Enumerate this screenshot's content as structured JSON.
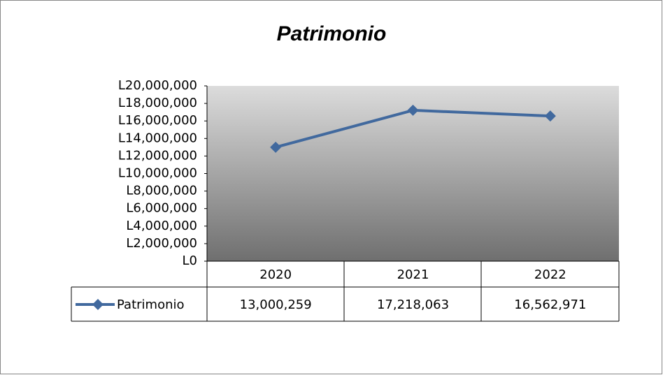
{
  "chart_data": {
    "type": "line",
    "title": "Patrimonio",
    "categories": [
      "2020",
      "2021",
      "2022"
    ],
    "series": [
      {
        "name": "Patrimonio",
        "color": "#41699e",
        "values": [
          13000259,
          17218063,
          16562971
        ],
        "value_labels": [
          "13,000,259",
          "17,218,063",
          "16,562,971"
        ]
      }
    ],
    "ylim": [
      0,
      20000000
    ],
    "yticks": [
      {
        "value": 0,
        "label": "L0"
      },
      {
        "value": 2000000,
        "label": "L2,000,000"
      },
      {
        "value": 4000000,
        "label": "L4,000,000"
      },
      {
        "value": 6000000,
        "label": "L6,000,000"
      },
      {
        "value": 8000000,
        "label": "L8,000,000"
      },
      {
        "value": 10000000,
        "label": "L10,000,000"
      },
      {
        "value": 12000000,
        "label": "L12,000,000"
      },
      {
        "value": 14000000,
        "label": "L14,000,000"
      },
      {
        "value": 16000000,
        "label": "L16,000,000"
      },
      {
        "value": 18000000,
        "label": "L18,000,000"
      },
      {
        "value": 20000000,
        "label": "L20,000,000"
      }
    ],
    "grid": false,
    "data_table": true
  }
}
